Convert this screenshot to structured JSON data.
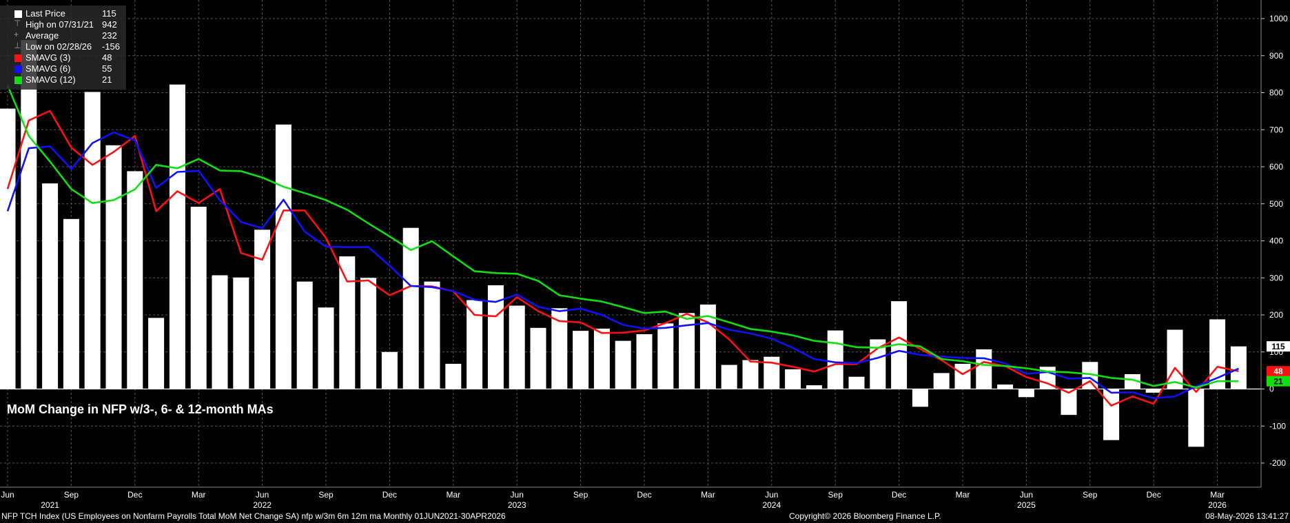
{
  "legend": [
    {
      "label": "Last Price",
      "value": "115",
      "kind": "box",
      "color": "#ffffff"
    },
    {
      "label": "High on 07/31/21",
      "value": "942",
      "kind": "glyph",
      "glyph": "⊤",
      "color": "#999999"
    },
    {
      "label": "Average",
      "value": "232",
      "kind": "glyph",
      "glyph": "+",
      "color": "#999999"
    },
    {
      "label": "Low on 02/28/26",
      "value": "-156",
      "kind": "glyph",
      "glyph": "⊥",
      "color": "#999999"
    },
    {
      "label": "SMAVG (3)",
      "value": "48",
      "kind": "box",
      "color": "#ff1010"
    },
    {
      "label": "SMAVG (6)",
      "value": "55",
      "kind": "box",
      "color": "#1010ff"
    },
    {
      "label": "SMAVG (12)",
      "value": "21",
      "kind": "box",
      "color": "#10e010"
    }
  ],
  "annotation": "MoM Change in NFP w/3-, 6- & 12-month MAs",
  "footer": {
    "left": "NFP TCH Index (US Employees on Nonfarm Payrolls Total MoM Net Change SA) nfp w/3m 6m 12m ma Monthly 01JUN2021-30APR2026",
    "center": "Copyright© 2026 Bloomberg Finance L.P.",
    "right": "08-May-2026 13:41:27"
  },
  "edge_labels": [
    {
      "value": "115",
      "color": "#ffffff",
      "text_color": "#000000"
    },
    {
      "value": "48",
      "color": "#ff1010",
      "text_color": "#ffffff"
    },
    {
      "value": "21",
      "color": "#10e010",
      "text_color": "#000000"
    }
  ],
  "chart_data": {
    "type": "bar",
    "x": [
      "2021-06",
      "2021-07",
      "2021-08",
      "2021-09",
      "2021-10",
      "2021-11",
      "2021-12",
      "2022-01",
      "2022-02",
      "2022-03",
      "2022-04",
      "2022-05",
      "2022-06",
      "2022-07",
      "2022-08",
      "2022-09",
      "2022-10",
      "2022-11",
      "2022-12",
      "2023-01",
      "2023-02",
      "2023-03",
      "2023-04",
      "2023-05",
      "2023-06",
      "2023-07",
      "2023-08",
      "2023-09",
      "2023-10",
      "2023-11",
      "2023-12",
      "2024-01",
      "2024-02",
      "2024-03",
      "2024-04",
      "2024-05",
      "2024-06",
      "2024-07",
      "2024-08",
      "2024-09",
      "2024-10",
      "2024-11",
      "2024-12",
      "2025-01",
      "2025-02",
      "2025-03",
      "2025-04",
      "2025-05",
      "2025-06",
      "2025-07",
      "2025-08",
      "2025-09",
      "2025-10",
      "2025-11",
      "2025-12",
      "2026-01",
      "2026-02",
      "2026-03",
      "2026-04"
    ],
    "series": [
      {
        "name": "Last Price",
        "kind": "bar",
        "color": "#ffffff",
        "values": [
          757,
          942,
          555,
          459,
          802,
          658,
          588,
          192,
          822,
          492,
          307,
          301,
          430,
          714,
          290,
          220,
          358,
          300,
          100,
          435,
          290,
          68,
          240,
          280,
          225,
          165,
          218,
          157,
          163,
          130,
          148,
          177,
          205,
          228,
          65,
          78,
          87,
          53,
          10,
          158,
          33,
          134,
          237,
          -48,
          43,
          68,
          107,
          12,
          -22,
          60,
          -70,
          73,
          -138,
          40,
          -10,
          160,
          -156,
          188,
          115
        ]
      },
      {
        "name": "SMAVG (3)",
        "kind": "line",
        "color": "#ff1010",
        "values": [
          540,
          725,
          751,
          652,
          605,
          640,
          683,
          480,
          534,
          502,
          540,
          367,
          349,
          482,
          482,
          408,
          290,
          293,
          253,
          278,
          277,
          264,
          200,
          196,
          248,
          210,
          183,
          180,
          151,
          152,
          158,
          178,
          203,
          180,
          134,
          74,
          71,
          60,
          47,
          67,
          67,
          110,
          139,
          108,
          78,
          40,
          73,
          62,
          32,
          15,
          -10,
          21,
          -45,
          -20,
          -40,
          57,
          -8,
          60,
          48
        ]
      },
      {
        "name": "SMAVG (6)",
        "kind": "line",
        "color": "#1010ff",
        "values": [
          480,
          650,
          655,
          594,
          664,
          693,
          671,
          543,
          586,
          589,
          510,
          451,
          434,
          511,
          425,
          384,
          383,
          383,
          333,
          278,
          275,
          264,
          241,
          235,
          255,
          222,
          210,
          217,
          200,
          173,
          163,
          165,
          172,
          178,
          160,
          150,
          136,
          111,
          81,
          72,
          70,
          84,
          103,
          92,
          87,
          84,
          83,
          69,
          41,
          46,
          28,
          30,
          -10,
          -9,
          -25,
          -20,
          7,
          30,
          55
        ]
      },
      {
        "name": "SMAVG (12)",
        "kind": "line",
        "color": "#10e010",
        "values": [
          820,
          683,
          614,
          540,
          502,
          510,
          539,
          605,
          596,
          621,
          590,
          588,
          571,
          546,
          529,
          510,
          484,
          447,
          412,
          375,
          399,
          358,
          318,
          313,
          311,
          292,
          253,
          244,
          236,
          221,
          205,
          209,
          189,
          197,
          180,
          162,
          155,
          145,
          130,
          124,
          113,
          111,
          121,
          115,
          81,
          75,
          65,
          62,
          56,
          47,
          45,
          40,
          30,
          25,
          8,
          19,
          4,
          21,
          21
        ]
      }
    ],
    "ylim": [
      -250,
      1050
    ],
    "yticks": [
      -200,
      -100,
      0,
      100,
      200,
      300,
      400,
      500,
      600,
      700,
      800,
      900,
      1000
    ],
    "xticks": [
      {
        "label": "Jun",
        "x": "2021-06"
      },
      {
        "label": "Sep",
        "x": "2021-09"
      },
      {
        "label": "Dec",
        "x": "2021-12"
      },
      {
        "label": "Mar",
        "x": "2022-03"
      },
      {
        "label": "Jun",
        "x": "2022-06"
      },
      {
        "label": "Sep",
        "x": "2022-09"
      },
      {
        "label": "Dec",
        "x": "2022-12"
      },
      {
        "label": "Mar",
        "x": "2023-03"
      },
      {
        "label": "Jun",
        "x": "2023-06"
      },
      {
        "label": "Sep",
        "x": "2023-09"
      },
      {
        "label": "Dec",
        "x": "2023-12"
      },
      {
        "label": "Mar",
        "x": "2024-03"
      },
      {
        "label": "Jun",
        "x": "2024-06"
      },
      {
        "label": "Sep",
        "x": "2024-09"
      },
      {
        "label": "Dec",
        "x": "2024-12"
      },
      {
        "label": "Mar",
        "x": "2025-03"
      },
      {
        "label": "Jun",
        "x": "2025-06"
      },
      {
        "label": "Sep",
        "x": "2025-09"
      },
      {
        "label": "Dec",
        "x": "2025-12"
      },
      {
        "label": "Mar",
        "x": "2026-03"
      }
    ],
    "year_labels": [
      {
        "label": "2021",
        "x": "2021-08"
      },
      {
        "label": "2022",
        "x": "2022-06"
      },
      {
        "label": "2023",
        "x": "2023-06"
      },
      {
        "label": "2024",
        "x": "2024-06"
      },
      {
        "label": "2025",
        "x": "2025-06"
      },
      {
        "label": "2026",
        "x": "2026-03"
      }
    ],
    "grid": true,
    "y_axis_side": "right",
    "legend_position": "top-left"
  }
}
